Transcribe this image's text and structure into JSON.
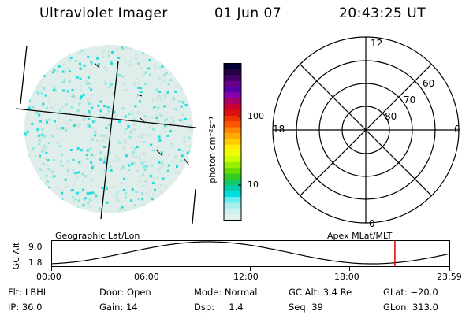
{
  "header": {
    "title": "Ultraviolet Imager",
    "date": "01 Jun 07",
    "time": "20:43:25 UT"
  },
  "colorbar": {
    "unit_label": "photon cm⁻²s⁻¹",
    "tick_labels": [
      "100",
      "10"
    ],
    "colors": [
      "#000033",
      "#220044",
      "#440066",
      "#660088",
      "#5500aa",
      "#8800aa",
      "#aa0066",
      "#cc0033",
      "#dd1111",
      "#ee3300",
      "#ff5500",
      "#ff8800",
      "#ffaa00",
      "#ffcc00",
      "#ffee00",
      "#eeff00",
      "#ccff00",
      "#99ee00",
      "#66dd00",
      "#33cc22",
      "#11cc66",
      "#00ccaa",
      "#00dddd",
      "#66eeee",
      "#aaeeee",
      "#ccf2f2",
      "#e0f0ec"
    ]
  },
  "polar_plot": {
    "mlt_labels": {
      "top": "12",
      "left": "18",
      "right": "6",
      "bottom": "0"
    },
    "lat_labels": [
      "60",
      "70",
      "80"
    ]
  },
  "timeline": {
    "left_label": "Geographic Lat/Lon",
    "right_label": "Apex MLat/MLT",
    "y_axis_label": "GC Alt",
    "y_ticks": [
      "9.0",
      "1.8"
    ],
    "x_ticks": [
      "00:00",
      "06:00",
      "12:00",
      "18:00",
      "23:59"
    ],
    "marker_time": "20:43",
    "marker_color": "#dd0000"
  },
  "info": {
    "filter": "Flt: LBHL",
    "ip": "IP: 36.0",
    "door": "Door: Open",
    "gain": "Gain: 14",
    "mode": "Mode: Normal",
    "dsp": "Dsp:     1.4",
    "gc_alt": "GC Alt: 3.4 Re",
    "seq": "Seq: 39",
    "glat": "GLat: −20.0",
    "glon": "GLon: 313.0"
  }
}
